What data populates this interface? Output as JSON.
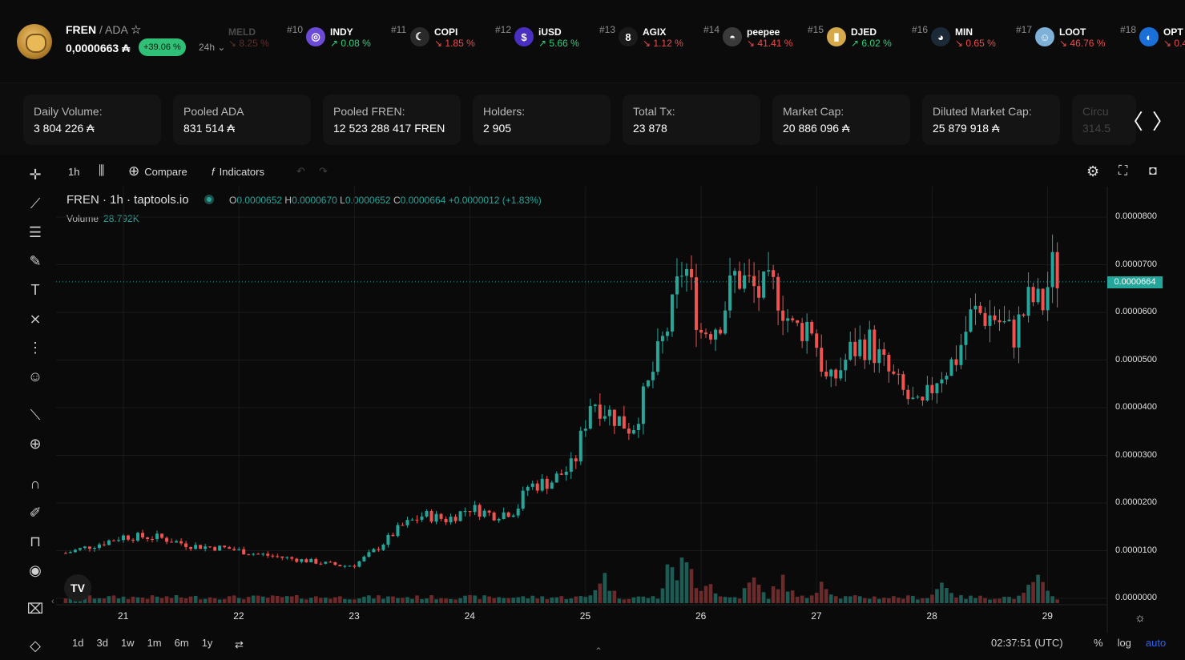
{
  "token": {
    "symbol": "FREN",
    "quote": "/ ADA",
    "price": "0,0000663 ₳",
    "change": "+39.06 %",
    "period": "24h ⌄",
    "star_icon": "star-icon"
  },
  "ticker": {
    "faded_symbol": "MELD",
    "faded_change": "↘ 8.25 %",
    "items": [
      {
        "rank": "#10",
        "symbol": "INDY",
        "change": "↗ 0.08 %",
        "dir": "up",
        "icon_color": "#6c4bd8",
        "glyph": "◎"
      },
      {
        "rank": "#11",
        "symbol": "COPI",
        "change": "↘ 1.85 %",
        "dir": "down",
        "icon_color": "#2a2a2a",
        "glyph": "☾"
      },
      {
        "rank": "#12",
        "symbol": "iUSD",
        "change": "↗ 5.66 %",
        "dir": "up",
        "icon_color": "#4a2fc0",
        "glyph": "$"
      },
      {
        "rank": "#13",
        "symbol": "AGIX",
        "change": "↘ 1.12 %",
        "dir": "down",
        "icon_color": "#1b1b1b",
        "glyph": "8"
      },
      {
        "rank": "#14",
        "symbol": "peepee",
        "change": "↘ 41.41 %",
        "dir": "down",
        "icon_color": "#3a3a3a",
        "glyph": "◓"
      },
      {
        "rank": "#15",
        "symbol": "DJED",
        "change": "↗ 6.02 %",
        "dir": "up",
        "icon_color": "#d6a94a",
        "glyph": "▮"
      },
      {
        "rank": "#16",
        "symbol": "MIN",
        "change": "↘ 0.65 %",
        "dir": "down",
        "icon_color": "#1c2a38",
        "glyph": "◕"
      },
      {
        "rank": "#17",
        "symbol": "LOOT",
        "change": "↘ 46.76 %",
        "dir": "down",
        "icon_color": "#7fb0d8",
        "glyph": "☺"
      },
      {
        "rank": "#18",
        "symbol": "OPT",
        "change": "↘ 0.4",
        "dir": "down",
        "icon_color": "#1a6fd8",
        "glyph": "◐"
      }
    ]
  },
  "stats": [
    {
      "label": "Daily Volume:",
      "value": "3 804 226 ₳"
    },
    {
      "label": "Pooled ADA",
      "value": "831 514 ₳"
    },
    {
      "label": "Pooled FREN:",
      "value": "12 523 288 417 FREN"
    },
    {
      "label": "Holders:",
      "value": "2 905"
    },
    {
      "label": "Total Tx:",
      "value": "23 878"
    },
    {
      "label": "Market Cap:",
      "value": "20 886 096 ₳"
    },
    {
      "label": "Diluted Market Cap:",
      "value": "25 879 918 ₳"
    },
    {
      "label": "Circu",
      "value": "314.5"
    }
  ],
  "nav": {
    "arrows": "〈 〉"
  },
  "toolbar": {
    "interval": "1h",
    "compare": "Compare",
    "indicators": "Indicators"
  },
  "legend": {
    "title": "FREN · 1h · taptools.io",
    "o_key": "O",
    "o": "0.0000652",
    "h_key": "H",
    "h": "0.0000670",
    "l_key": "L",
    "l": "0.0000652",
    "c_key": "C",
    "c": "0.0000664",
    "delta": "+0.0000012 (+1.83%)",
    "volume_label": "Volume",
    "volume_value": "28.792K"
  },
  "bottom": {
    "ranges": [
      "1d",
      "3d",
      "1w",
      "1m",
      "6m",
      "1y"
    ],
    "clock": "02:37:51 (UTC)",
    "pct": "%",
    "log": "log",
    "auto": "auto"
  },
  "chart_data": {
    "type": "candlestick",
    "current_price_label": "0.0000664",
    "y_ticks": [
      "0.0000800",
      "0.0000700",
      "0.0000600",
      "0.0000500",
      "0.0000400",
      "0.0000300",
      "0.0000200",
      "0.0000100",
      "0.0000000"
    ],
    "x_ticks": [
      "21",
      "22",
      "23",
      "24",
      "25",
      "26",
      "27",
      "28",
      "29"
    ],
    "ylim": [
      0,
      8.7e-05
    ],
    "close_path": [
      [
        20.5,
        9.5e-06
      ],
      [
        20.8,
        1.15e-05
      ],
      [
        21.0,
        1.3e-05
      ],
      [
        21.3,
        1.28e-05
      ],
      [
        21.6,
        1.1e-05
      ],
      [
        21.9,
        1.05e-05
      ],
      [
        22.1,
        9.5e-06
      ],
      [
        22.4,
        8.5e-06
      ],
      [
        22.7,
        7.5e-06
      ],
      [
        22.9,
        6.8e-06
      ],
      [
        23.0,
        7e-06
      ],
      [
        23.2,
        1.05e-05
      ],
      [
        23.4,
        1.5e-05
      ],
      [
        23.6,
        1.75e-05
      ],
      [
        23.8,
        1.65e-05
      ],
      [
        24.0,
        1.9e-05
      ],
      [
        24.2,
        1.75e-05
      ],
      [
        24.4,
        1.85e-05
      ],
      [
        24.5,
        2.35e-05
      ],
      [
        24.7,
        2.45e-05
      ],
      [
        24.9,
        2.8e-05
      ],
      [
        25.05,
        4.2e-05
      ],
      [
        25.2,
        3.9e-05
      ],
      [
        25.4,
        3.55e-05
      ],
      [
        25.55,
        4.5e-05
      ],
      [
        25.75,
        6e-05
      ],
      [
        25.85,
        7.1e-05
      ],
      [
        26.0,
        5.6e-05
      ],
      [
        26.15,
        5.8e-05
      ],
      [
        26.3,
        6.8e-05
      ],
      [
        26.5,
        6.4e-05
      ],
      [
        26.65,
        6.5e-05
      ],
      [
        26.8,
        5.6e-05
      ],
      [
        26.95,
        5.8e-05
      ],
      [
        27.1,
        4.4e-05
      ],
      [
        27.3,
        5.2e-05
      ],
      [
        27.45,
        5.4e-05
      ],
      [
        27.6,
        4.8e-05
      ],
      [
        27.75,
        4.3e-05
      ],
      [
        27.9,
        3.9e-05
      ],
      [
        28.05,
        4.7e-05
      ],
      [
        28.2,
        5e-05
      ],
      [
        28.35,
        6e-05
      ],
      [
        28.55,
        5.9e-05
      ],
      [
        28.7,
        5.5e-05
      ],
      [
        28.85,
        6.3e-05
      ],
      [
        28.95,
        6.1e-05
      ],
      [
        29.05,
        7e-05
      ],
      [
        29.1,
        6.64e-05
      ]
    ],
    "volume_peaks": [
      [
        25.15,
        1.0
      ],
      [
        25.75,
        1.55
      ],
      [
        25.85,
        1.55
      ],
      [
        25.9,
        1.3
      ],
      [
        26.05,
        0.8
      ],
      [
        26.45,
        0.75
      ],
      [
        26.7,
        0.8
      ],
      [
        27.05,
        0.8
      ],
      [
        28.1,
        0.7
      ],
      [
        28.9,
        0.9
      ]
    ]
  }
}
